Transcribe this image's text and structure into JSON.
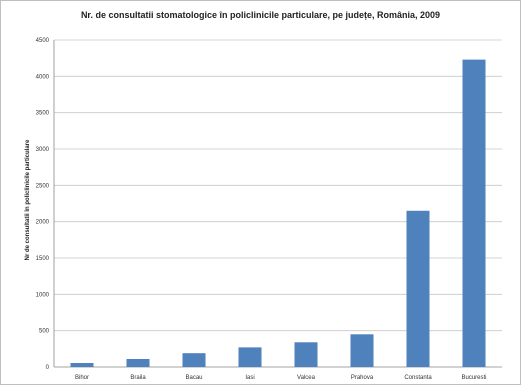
{
  "chart_data": {
    "type": "bar",
    "title": "Nr. de consultatii stomatologice în policlinicile particulare, pe județe, România, 2009",
    "ylabel": "Nr de consultatii în policlinicile particulare",
    "xlabel": "",
    "ylim": [
      0,
      4500
    ],
    "yticks": [
      "0",
      "500",
      "1000",
      "1500",
      "2000",
      "2500",
      "3000",
      "3500",
      "4000",
      "4500"
    ],
    "categories": [
      "Bihor",
      "Braila",
      "Bacau",
      "Iasi",
      "Valcea",
      "Prahova",
      "Constanta",
      "Bucuresti"
    ],
    "values": [
      55,
      110,
      190,
      270,
      340,
      450,
      2150,
      4230
    ],
    "grid": true,
    "legend": "none",
    "bar_color": "#4f81bd"
  }
}
